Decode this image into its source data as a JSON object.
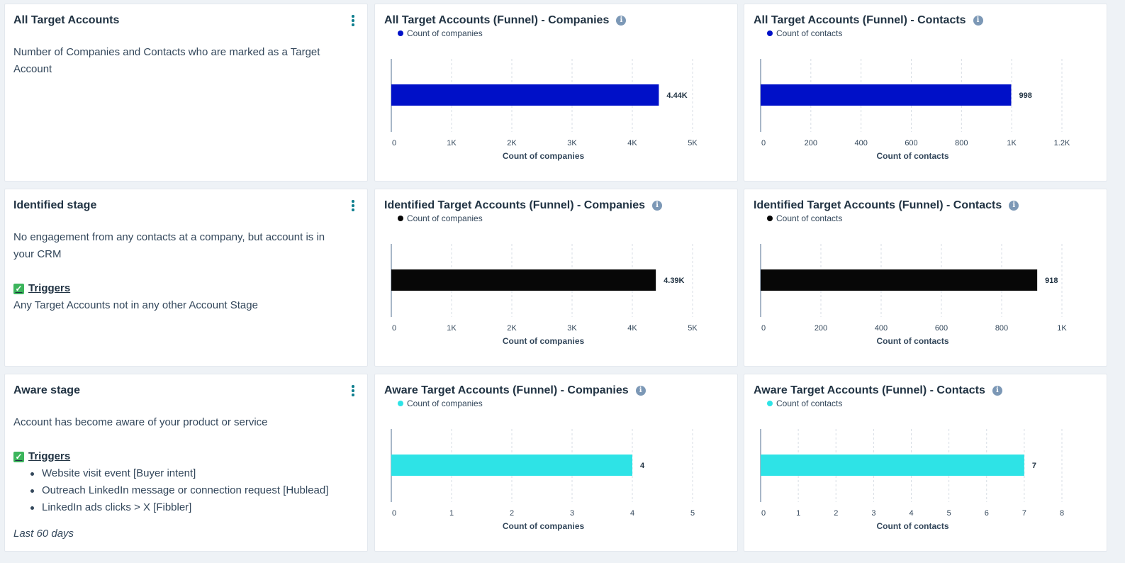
{
  "rows": [
    {
      "text_card": {
        "title": "All Target Accounts",
        "description": "Number of Companies and Contacts who are marked as a Target Account"
      },
      "charts": [
        {
          "title": "All Target Accounts (Funnel) - Companies",
          "legend": "Count of companies",
          "color": "#0010c8",
          "chart_data": {
            "type": "bar",
            "orientation": "horizontal",
            "categories": [
              ""
            ],
            "series": [
              {
                "name": "Count of companies",
                "values": [
                  4440
                ]
              }
            ],
            "value_label": "4.44K",
            "xlabel": "Count of companies",
            "xlim": [
              0,
              5000
            ],
            "ticks": [
              0,
              1000,
              2000,
              3000,
              4000,
              5000
            ],
            "tick_labels": [
              "0",
              "1K",
              "2K",
              "3K",
              "4K",
              "5K"
            ]
          }
        },
        {
          "title": "All Target Accounts (Funnel) - Contacts",
          "legend": "Count of contacts",
          "color": "#0010c8",
          "chart_data": {
            "type": "bar",
            "orientation": "horizontal",
            "categories": [
              ""
            ],
            "series": [
              {
                "name": "Count of contacts",
                "values": [
                  998
                ]
              }
            ],
            "value_label": "998",
            "xlabel": "Count of contacts",
            "xlim": [
              0,
              1200
            ],
            "ticks": [
              0,
              200,
              400,
              600,
              800,
              1000,
              1200
            ],
            "tick_labels": [
              "0",
              "200",
              "400",
              "600",
              "800",
              "1K",
              "1.2K"
            ]
          }
        }
      ]
    },
    {
      "text_card": {
        "title": "Identified stage",
        "description": "No engagement from any contacts at a company, but account is in your CRM",
        "triggers_label": "Triggers",
        "triggers_text": "Any Target Accounts not in any other Account Stage"
      },
      "charts": [
        {
          "title": "Identified Target Accounts (Funnel) - Companies",
          "legend": "Count of companies",
          "color": "#070707",
          "chart_data": {
            "type": "bar",
            "orientation": "horizontal",
            "categories": [
              ""
            ],
            "series": [
              {
                "name": "Count of companies",
                "values": [
                  4390
                ]
              }
            ],
            "value_label": "4.39K",
            "xlabel": "Count of companies",
            "xlim": [
              0,
              5000
            ],
            "ticks": [
              0,
              1000,
              2000,
              3000,
              4000,
              5000
            ],
            "tick_labels": [
              "0",
              "1K",
              "2K",
              "3K",
              "4K",
              "5K"
            ]
          }
        },
        {
          "title": "Identified Target Accounts (Funnel) - Contacts",
          "legend": "Count of contacts",
          "color": "#070707",
          "chart_data": {
            "type": "bar",
            "orientation": "horizontal",
            "categories": [
              ""
            ],
            "series": [
              {
                "name": "Count of contacts",
                "values": [
                  918
                ]
              }
            ],
            "value_label": "918",
            "xlabel": "Count of contacts",
            "xlim": [
              0,
              1000
            ],
            "ticks": [
              0,
              200,
              400,
              600,
              800,
              1000
            ],
            "tick_labels": [
              "0",
              "200",
              "400",
              "600",
              "800",
              "1K"
            ]
          }
        }
      ]
    },
    {
      "text_card": {
        "title": "Aware stage",
        "description": "Account has become aware of your product or service",
        "triggers_label": "Triggers",
        "trigger_items": [
          "Website visit event [Buyer intent]",
          "Outreach LinkedIn message or connection request [Hublead]",
          "LinkedIn ads clicks > X [Fibbler]"
        ],
        "footnote": "Last 60 days"
      },
      "charts": [
        {
          "title": "Aware Target Accounts (Funnel) - Companies",
          "legend": "Count of companies",
          "color": "#2ee3e6",
          "chart_data": {
            "type": "bar",
            "orientation": "horizontal",
            "categories": [
              ""
            ],
            "series": [
              {
                "name": "Count of companies",
                "values": [
                  4
                ]
              }
            ],
            "value_label": "4",
            "xlabel": "Count of companies",
            "xlim": [
              0,
              5
            ],
            "ticks": [
              0,
              1,
              2,
              3,
              4,
              5
            ],
            "tick_labels": [
              "0",
              "1",
              "2",
              "3",
              "4",
              "5"
            ]
          }
        },
        {
          "title": "Aware Target Accounts (Funnel) - Contacts",
          "legend": "Count of contacts",
          "color": "#2ee3e6",
          "chart_data": {
            "type": "bar",
            "orientation": "horizontal",
            "categories": [
              ""
            ],
            "series": [
              {
                "name": "Count of contacts",
                "values": [
                  7
                ]
              }
            ],
            "value_label": "7",
            "xlabel": "Count of contacts",
            "xlim": [
              0,
              8
            ],
            "ticks": [
              0,
              1,
              2,
              3,
              4,
              5,
              6,
              7,
              8
            ],
            "tick_labels": [
              "0",
              "1",
              "2",
              "3",
              "4",
              "5",
              "6",
              "7",
              "8"
            ]
          }
        }
      ]
    }
  ],
  "icons": {
    "menu": "vertical-dots-icon",
    "info": "info-icon",
    "check": "check-box-icon"
  }
}
